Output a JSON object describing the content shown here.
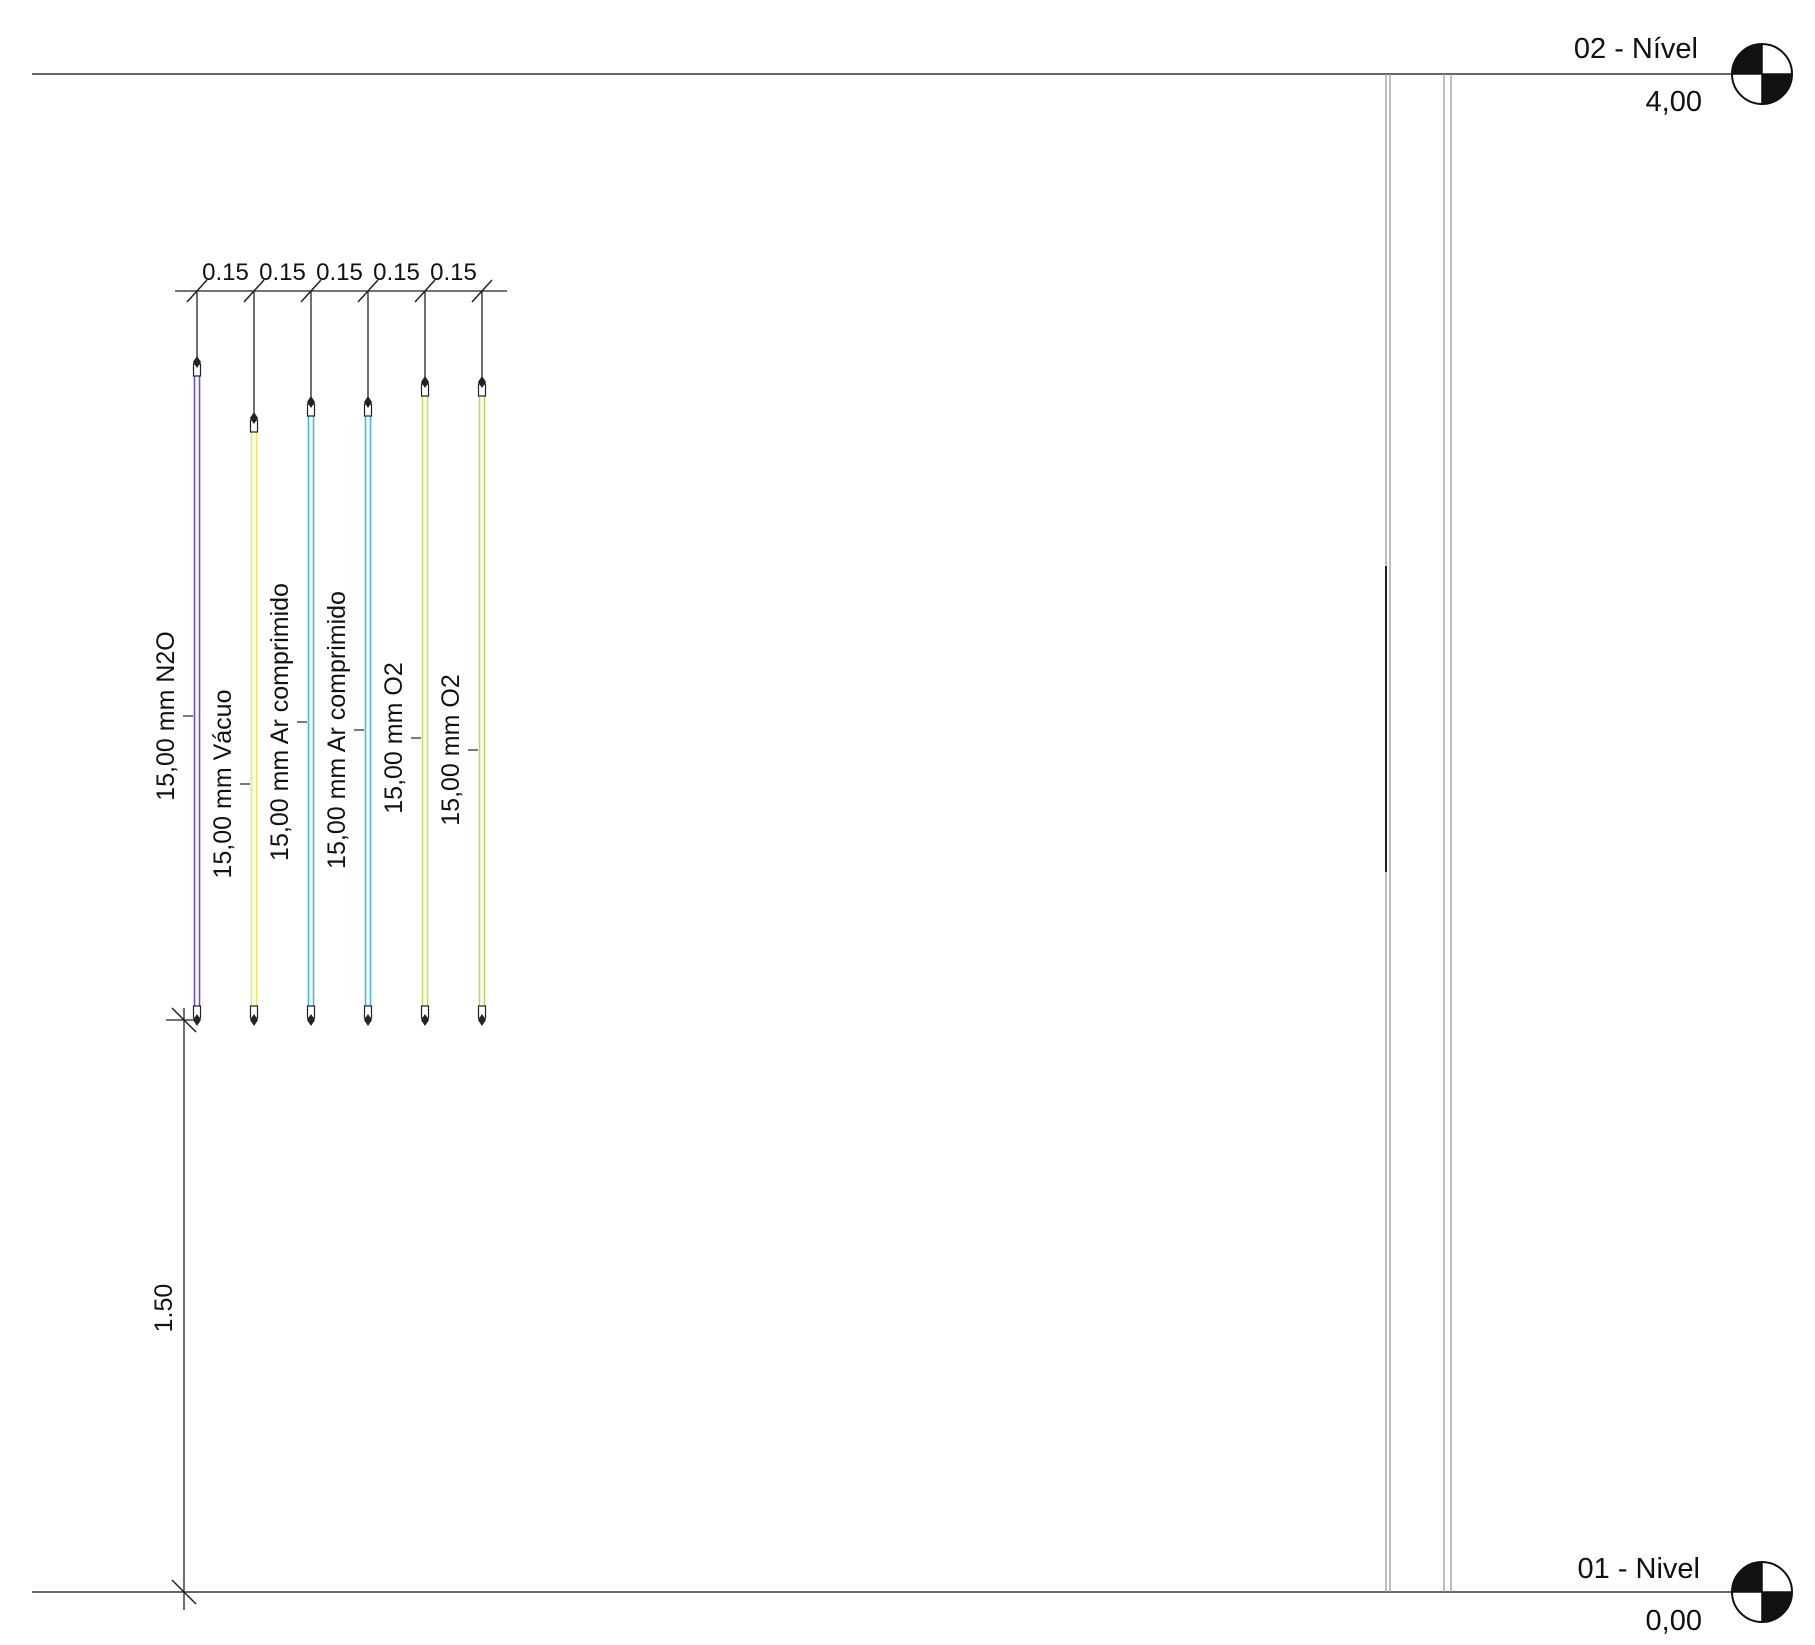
{
  "levels": {
    "top": {
      "name": "02 - Nível",
      "elevation": "4,00"
    },
    "bottom": {
      "name": "01 - Nivel",
      "elevation": "0,00"
    }
  },
  "spacing_dimensions": [
    "0.15",
    "0.15",
    "0.15",
    "0.15",
    "0.15"
  ],
  "height_dimension": "1.50",
  "pipes": [
    {
      "label": "15,00 mm N2O",
      "color": "#6a4bd6"
    },
    {
      "label": "15,00 mm Vácuo",
      "color": "#eeea55"
    },
    {
      "label": "15,00 mm Ar comprimido",
      "color": "#45b9e6"
    },
    {
      "label": "15,00 mm Ar comprimido",
      "color": "#45b9e6"
    },
    {
      "label": "15,00 mm O2",
      "color": "#c5df55"
    },
    {
      "label": "15,00 mm O2",
      "color": "#b9d860"
    }
  ]
}
